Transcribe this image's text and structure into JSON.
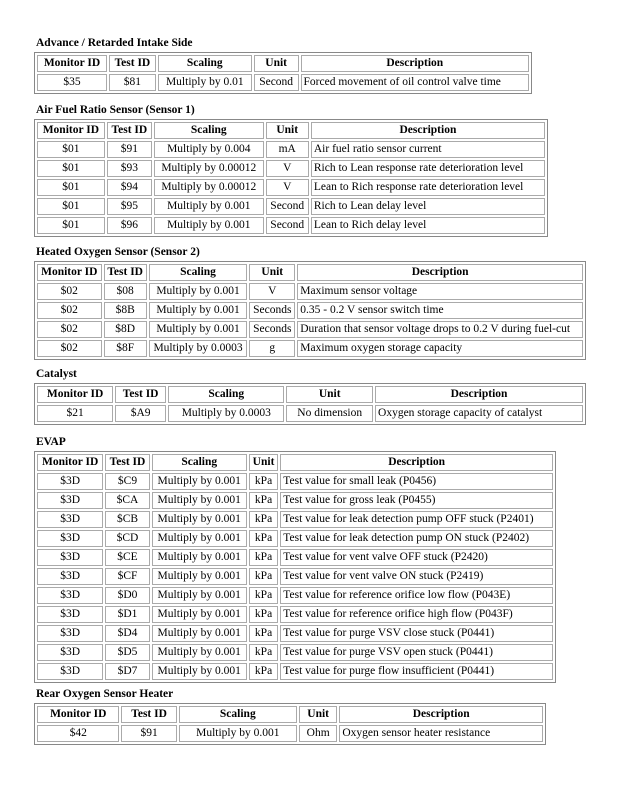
{
  "sections": [
    {
      "title": "Advance / Retarded Intake Side",
      "headers": [
        "Monitor ID",
        "Test ID",
        "Scaling",
        "Unit",
        "Description"
      ],
      "rows": [
        [
          "$35",
          "$81",
          "Multiply by 0.01",
          "Second",
          "Forced movement of oil control valve time"
        ]
      ]
    },
    {
      "title": "Air Fuel Ratio Sensor (Sensor 1)",
      "headers": [
        "Monitor ID",
        "Test ID",
        "Scaling",
        "Unit",
        "Description"
      ],
      "rows": [
        [
          "$01",
          "$91",
          "Multiply by 0.004",
          "mA",
          "Air fuel ratio sensor current"
        ],
        [
          "$01",
          "$93",
          "Multiply by 0.00012",
          "V",
          "Rich to Lean response rate deterioration level"
        ],
        [
          "$01",
          "$94",
          "Multiply by 0.00012",
          "V",
          "Lean to Rich response rate deterioration level"
        ],
        [
          "$01",
          "$95",
          "Multiply by 0.001",
          "Second",
          "Rich to Lean delay level"
        ],
        [
          "$01",
          "$96",
          "Multiply by 0.001",
          "Second",
          "Lean to Rich delay level"
        ]
      ]
    },
    {
      "title": "Heated Oxygen Sensor (Sensor 2)",
      "headers": [
        "Monitor ID",
        "Test ID",
        "Scaling",
        "Unit",
        "Description"
      ],
      "rows": [
        [
          "$02",
          "$08",
          "Multiply by 0.001",
          "V",
          "Maximum sensor voltage"
        ],
        [
          "$02",
          "$8B",
          "Multiply by 0.001",
          "Seconds",
          "0.35 - 0.2 V sensor switch time"
        ],
        [
          "$02",
          "$8D",
          "Multiply by 0.001",
          "Seconds",
          "Duration that sensor voltage drops to 0.2 V during fuel-cut"
        ],
        [
          "$02",
          "$8F",
          "Multiply by 0.0003",
          "g",
          "Maximum oxygen storage capacity"
        ]
      ]
    },
    {
      "title": "Catalyst",
      "headers": [
        "Monitor ID",
        "Test ID",
        "Scaling",
        "Unit",
        "Description"
      ],
      "rows": [
        [
          "$21",
          "$A9",
          "Multiply by 0.0003",
          "No dimension",
          "Oxygen storage capacity of catalyst"
        ]
      ]
    },
    {
      "title": "EVAP",
      "headers": [
        "Monitor ID",
        "Test ID",
        "Scaling",
        "Unit",
        "Description"
      ],
      "rows": [
        [
          "$3D",
          "$C9",
          "Multiply by 0.001",
          "kPa",
          "Test value for small leak (P0456)"
        ],
        [
          "$3D",
          "$CA",
          "Multiply by 0.001",
          "kPa",
          "Test value for gross leak (P0455)"
        ],
        [
          "$3D",
          "$CB",
          "Multiply by 0.001",
          "kPa",
          "Test value for leak detection pump OFF stuck (P2401)"
        ],
        [
          "$3D",
          "$CD",
          "Multiply by 0.001",
          "kPa",
          "Test value for leak detection pump ON stuck (P2402)"
        ],
        [
          "$3D",
          "$CE",
          "Multiply by 0.001",
          "kPa",
          "Test value for vent valve OFF stuck (P2420)"
        ],
        [
          "$3D",
          "$CF",
          "Multiply by 0.001",
          "kPa",
          "Test value for vent valve ON stuck (P2419)"
        ],
        [
          "$3D",
          "$D0",
          "Multiply by 0.001",
          "kPa",
          "Test value for reference orifice low flow (P043E)"
        ],
        [
          "$3D",
          "$D1",
          "Multiply by 0.001",
          "kPa",
          "Test value for reference orifice high flow (P043F)"
        ],
        [
          "$3D",
          "$D4",
          "Multiply by 0.001",
          "kPa",
          "Test value for purge VSV close stuck (P0441)"
        ],
        [
          "$3D",
          "$D5",
          "Multiply by 0.001",
          "kPa",
          "Test value for purge VSV open stuck (P0441)"
        ],
        [
          "$3D",
          "$D7",
          "Multiply by 0.001",
          "kPa",
          "Test value for purge flow insufficient (P0441)"
        ]
      ]
    },
    {
      "title": "Rear Oxygen Sensor Heater",
      "headers": [
        "Monitor ID",
        "Test ID",
        "Scaling",
        "Unit",
        "Description"
      ],
      "rows": [
        [
          "$42",
          "$91",
          "Multiply by 0.001",
          "Ohm",
          "Oxygen sensor heater resistance"
        ]
      ]
    }
  ]
}
